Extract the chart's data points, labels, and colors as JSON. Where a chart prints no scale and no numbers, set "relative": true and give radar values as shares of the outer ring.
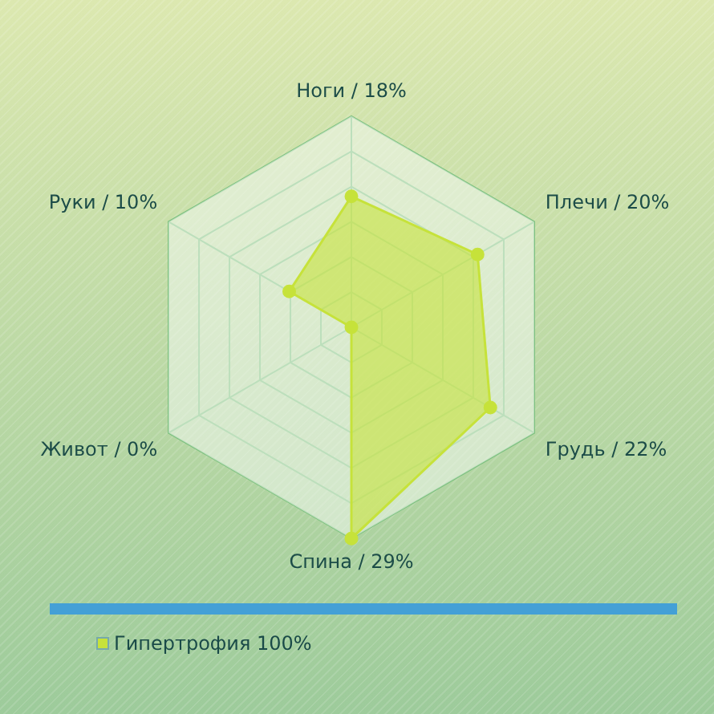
{
  "chart_data": {
    "type": "radar",
    "relative": true,
    "grid": true,
    "legend": "bottom left",
    "marker": "circle",
    "categories": [
      "Ноги / 18%",
      "Плечи / 20%",
      "Грудь / 22%",
      "Спина / 29%",
      "Живот / 0%",
      "Руки / 10%"
    ],
    "series": [
      {
        "name": "Гипертрофия 100%",
        "color": "#c6e23a",
        "values": [
          0.62,
          0.69,
          0.76,
          1,
          0,
          0.34
        ]
      }
    ]
  }
}
